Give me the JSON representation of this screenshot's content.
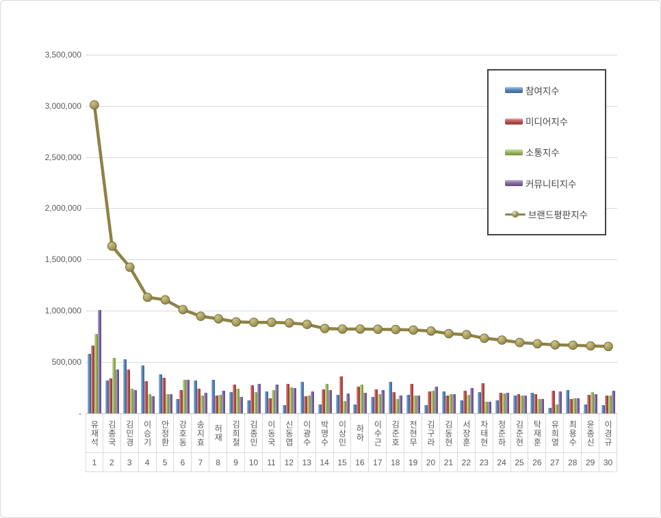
{
  "chart_data": {
    "type": "bar",
    "subtype": "grouped-bars-with-line-overlay",
    "title": "",
    "xlabel": "",
    "ylabel": "",
    "ylim": [
      0,
      3500000
    ],
    "ytick_interval": 500000,
    "ytick_labels_bottom_up": [
      "-",
      "500,000",
      "1,000,000",
      "1,500,000",
      "2,000,000",
      "2,500,000",
      "3,000,000",
      "3,500,000"
    ],
    "grid": true,
    "legend_position": "upper right",
    "categories": [
      "유재석",
      "김종국",
      "김민경",
      "이승기",
      "안정환",
      "강호동",
      "송지효",
      "허재",
      "김희철",
      "김종민",
      "이동국",
      "신동엽",
      "이광수",
      "박명수",
      "이상민",
      "하하",
      "이수근",
      "김준호",
      "전현무",
      "김구라",
      "김동현",
      "서장훈",
      "차태현",
      "정준하",
      "김준현",
      "탁재훈",
      "유희열",
      "최용수",
      "윤종신",
      "이경규"
    ],
    "ranks": [
      "1",
      "2",
      "3",
      "4",
      "5",
      "6",
      "7",
      "8",
      "9",
      "10",
      "11",
      "12",
      "13",
      "14",
      "15",
      "16",
      "17",
      "18",
      "19",
      "20",
      "21",
      "22",
      "23",
      "24",
      "25",
      "26",
      "27",
      "28",
      "29",
      "30"
    ],
    "series": [
      {
        "name": "참여지수",
        "render": "bar",
        "color": "#4F81BD",
        "values": [
          585000,
          323000,
          528000,
          468000,
          380000,
          140000,
          323000,
          327000,
          205000,
          129000,
          212000,
          78000,
          305000,
          85000,
          178000,
          89000,
          163000,
          305000,
          180000,
          82000,
          216000,
          130000,
          207000,
          129000,
          174000,
          200000,
          56000,
          230000,
          89000,
          78000
        ]
      },
      {
        "name": "미디어지수",
        "render": "bar",
        "color": "#BE4B48",
        "values": [
          660000,
          340000,
          428000,
          312000,
          350000,
          229000,
          238000,
          174000,
          278000,
          272000,
          150000,
          285000,
          167000,
          234000,
          361000,
          261000,
          234000,
          207000,
          287000,
          216000,
          174000,
          220000,
          294000,
          200000,
          185000,
          188000,
          218000,
          140000,
          180000,
          176000
        ]
      },
      {
        "name": "소통지수",
        "render": "bar",
        "color": "#9BBB59",
        "values": [
          775000,
          540000,
          240000,
          190000,
          185000,
          330000,
          175000,
          183000,
          241000,
          207000,
          227000,
          256000,
          174000,
          285000,
          120000,
          278000,
          185000,
          140000,
          174000,
          223000,
          189000,
          178000,
          111000,
          196000,
          174000,
          140000,
          85000,
          149000,
          205000,
          174000
        ]
      },
      {
        "name": "커뮤니티지수",
        "render": "bar",
        "color": "#8064A2",
        "values": [
          1010000,
          430000,
          230000,
          167000,
          190000,
          330000,
          200000,
          223000,
          163000,
          285000,
          278000,
          245000,
          212000,
          227000,
          194000,
          200000,
          227000,
          174000,
          175000,
          261000,
          189000,
          248000,
          111000,
          200000,
          174000,
          140000,
          211000,
          150000,
          185000,
          218000
        ]
      },
      {
        "name": "브랜드평판지수",
        "render": "line",
        "color": "#8D8347",
        "marker_fill_light": "#CDC489",
        "marker_stroke": "#6C6433",
        "values": [
          3010000,
          1630000,
          1425000,
          1130000,
          1105000,
          1010000,
          945000,
          920000,
          890000,
          885000,
          885000,
          880000,
          865000,
          825000,
          820000,
          820000,
          818000,
          815000,
          810000,
          800000,
          775000,
          765000,
          730000,
          712000,
          688000,
          676000,
          665000,
          662000,
          655000,
          650000
        ]
      }
    ],
    "colors": {
      "gridline": "#D9D9D9",
      "axis_line": "#BFBFBF",
      "tick_text": "#595959",
      "legend_border": "#404040",
      "background": "#FFFFFF"
    }
  }
}
